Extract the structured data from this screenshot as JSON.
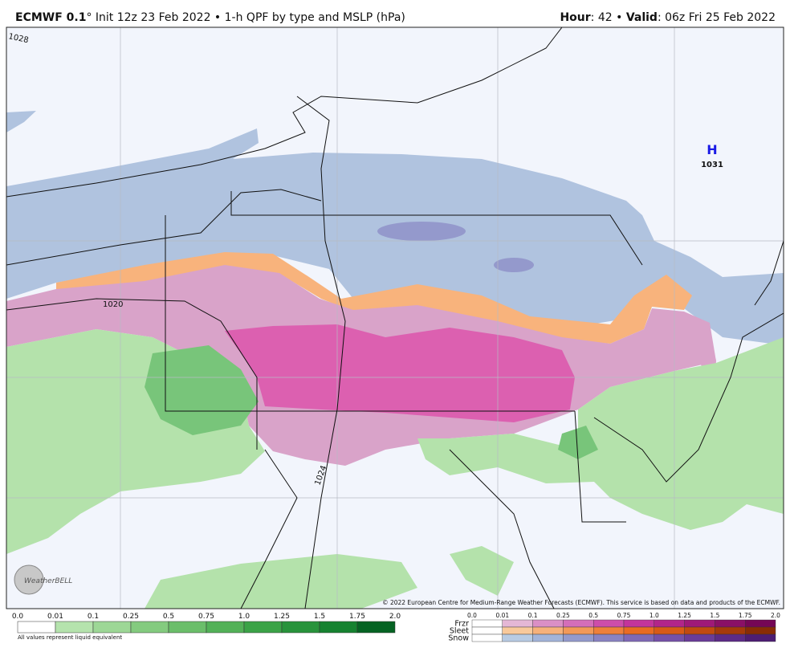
{
  "header": {
    "model": "ECMWF 0.1",
    "description": "° Init 12z 23 Feb 2022 • 1-h QPF by type and MSLP (hPa)",
    "hour_label": "Hour",
    "hour_value": ": 42 • ",
    "valid_label": "Valid",
    "valid_value": ": 06z Fri 25 Feb 2022"
  },
  "map": {
    "isobar_labels": [
      "1028",
      "1020",
      "1024"
    ],
    "high": {
      "symbol": "H",
      "pressure": "1031"
    },
    "logo": "WeatherBELL",
    "copyright": "© 2022 European Centre for Medium-Range Weather Forecasts (ECMWF). This service is based on data and products of the ECMWF."
  },
  "legend": {
    "rain_ticks": [
      "0.0",
      "0.01",
      "0.1",
      "0.25",
      "0.5",
      "0.75",
      "1.0",
      "1.25",
      "1.5",
      "1.75",
      "2.0"
    ],
    "rain_colors": [
      "#ffffff",
      "#b5e3ad",
      "#9dd796",
      "#84cb7f",
      "#6bbe6a",
      "#53b158",
      "#3ba347",
      "#28933b",
      "#168230",
      "#056323"
    ],
    "note": "All values represent liquid equivalent",
    "mixed_ticks": [
      "0.0",
      "0.01",
      "0.1",
      "0.25",
      "0.5",
      "0.75",
      "1.0",
      "1.25",
      "1.5",
      "1.75",
      "2.0"
    ],
    "mixed_rows": [
      {
        "name": "Frzr",
        "colors": [
          "#ffffff",
          "#e4b7d5",
          "#da8fc5",
          "#d46eb9",
          "#cd4daa",
          "#c3349b",
          "#b2258a",
          "#9f1978",
          "#8a1066",
          "#750656"
        ]
      },
      {
        "name": "Sleet",
        "colors": [
          "#ffffff",
          "#f8c99b",
          "#f6b17b",
          "#f29959",
          "#ee803b",
          "#e96b23",
          "#d85a17",
          "#c14a10",
          "#a53a0a",
          "#892c05"
        ]
      },
      {
        "name": "Snow",
        "colors": [
          "#ffffff",
          "#b8cbe3",
          "#a3b4d9",
          "#949acc",
          "#8a83c2",
          "#8069b6",
          "#7651a8",
          "#6a3c98",
          "#5c2b86",
          "#4d1d73"
        ]
      }
    ]
  }
}
